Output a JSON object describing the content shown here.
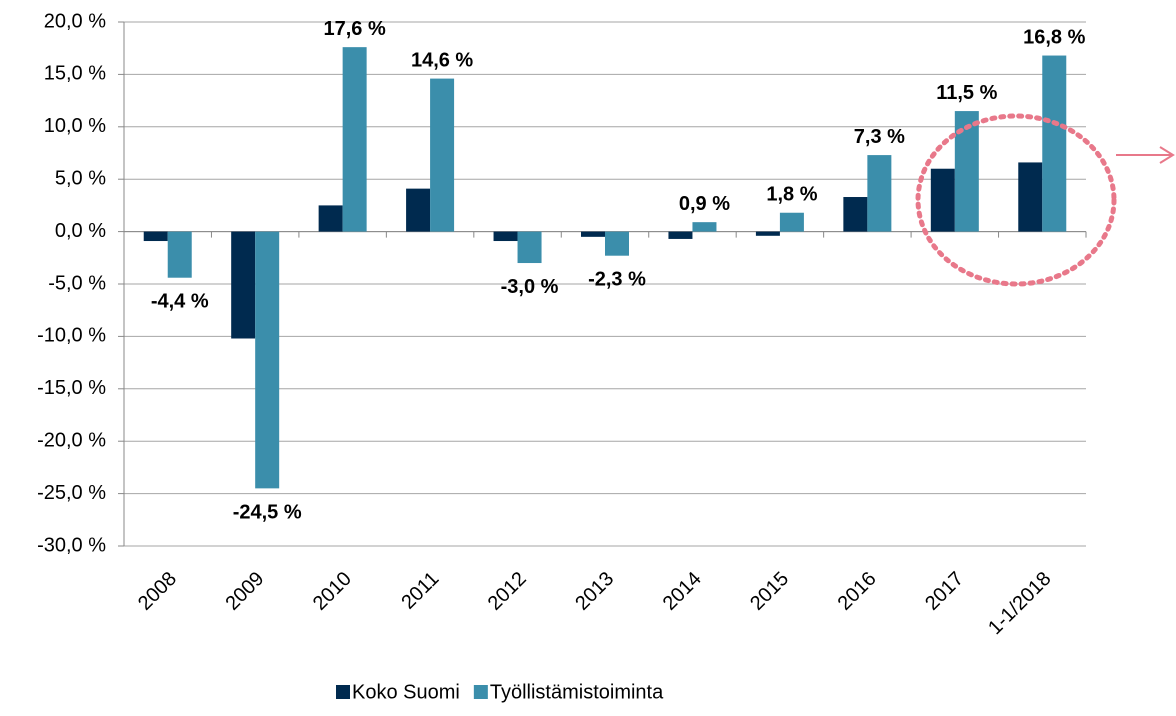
{
  "chart_data": {
    "type": "bar",
    "categories": [
      "2008",
      "2009",
      "2010",
      "2011",
      "2012",
      "2013",
      "2014",
      "2015",
      "2016",
      "2017",
      "1-1/2018"
    ],
    "series": [
      {
        "name": "Koko Suomi",
        "color": "#002a4f",
        "values": [
          -0.9,
          -10.2,
          2.5,
          4.1,
          -0.9,
          -0.5,
          -0.7,
          -0.4,
          3.3,
          6.0,
          6.6
        ]
      },
      {
        "name": "Työllistämistoiminta",
        "color": "#3b8eab",
        "values": [
          -4.4,
          -24.5,
          17.6,
          14.6,
          -3.0,
          -2.3,
          0.9,
          1.8,
          7.3,
          11.5,
          16.8
        ],
        "value_labels": [
          "-4,4 %",
          "-24,5 %",
          "17,6 %",
          "14,6 %",
          "-3,0 %",
          "-2,3 %",
          "0,9 %",
          "1,8 %",
          "7,3 %",
          "11,5 %",
          "16,8 %"
        ]
      }
    ],
    "ylim": [
      -30,
      20
    ],
    "yticks": [
      {
        "value": -30,
        "label": "-30,0 %"
      },
      {
        "value": -25,
        "label": "-25,0 %"
      },
      {
        "value": -20,
        "label": "-20,0 %"
      },
      {
        "value": -15,
        "label": "-15,0 %"
      },
      {
        "value": -10,
        "label": "-10,0 %"
      },
      {
        "value": -5,
        "label": "-5,0 %"
      },
      {
        "value": 0,
        "label": "0,0 %"
      },
      {
        "value": 5,
        "label": "5,0 %"
      },
      {
        "value": 10,
        "label": "10,0 %"
      },
      {
        "value": 15,
        "label": "15,0 %"
      },
      {
        "value": 20,
        "label": "20,0 %"
      }
    ],
    "grid": true
  }
}
